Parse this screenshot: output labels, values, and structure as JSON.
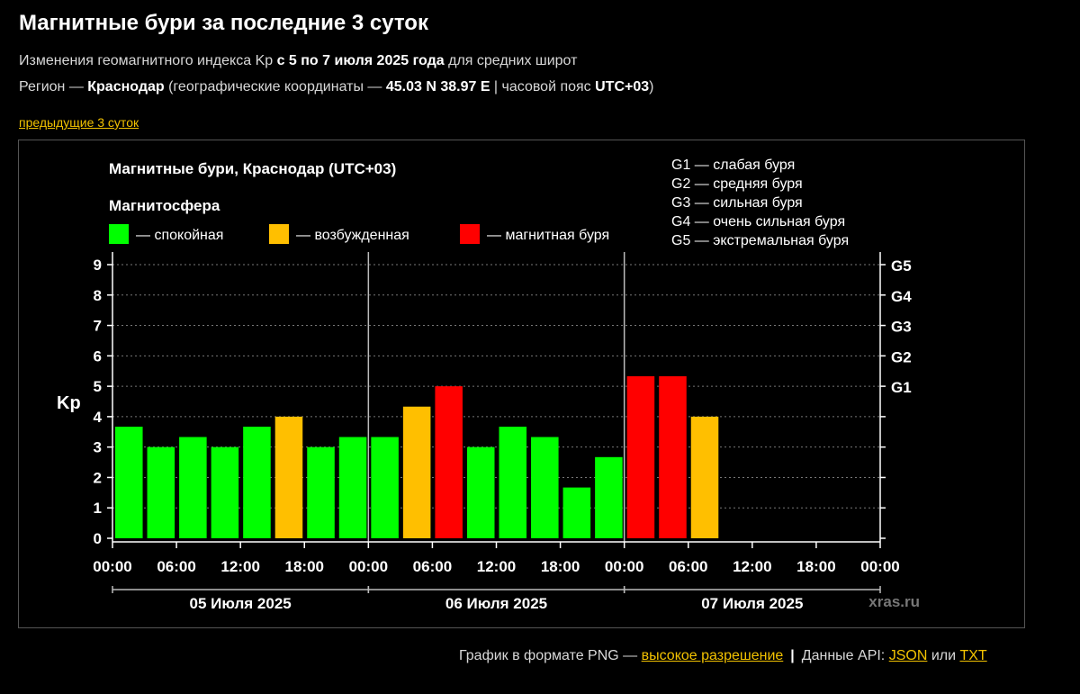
{
  "header": {
    "title": "Магнитные бури за последние 3 суток",
    "line1_prefix": "Изменения геомагнитного индекса Kp ",
    "line1_bold": "с 5 по 7 июля 2025 года",
    "line1_suffix": " для средних широт",
    "line2_prefix": "Регион — ",
    "line2_region": "Краснодар",
    "line2_mid": " (географические координаты — ",
    "line2_coords": "45.03 N 38.97 E",
    "line2_mid2": " | часовой пояс ",
    "line2_tz": "UTC+03",
    "line2_suffix": ")",
    "prev_link": "предыдущие 3 суток"
  },
  "colors": {
    "calm": "#00ff00",
    "excited": "#ffbf00",
    "storm": "#ff0000",
    "link": "#f2c200"
  },
  "chart_data": {
    "type": "bar",
    "title": "Магнитные бури, Краснодар (UTC+03)",
    "legend_title": "Магнитосфера",
    "legend": [
      {
        "label": "— спокойная",
        "color": "#00ff00"
      },
      {
        "label": "— возбужденная",
        "color": "#ffbf00"
      },
      {
        "label": "— магнитная буря",
        "color": "#ff0000"
      }
    ],
    "g_scale_legend": [
      "G1 — слабая буря",
      "G2 — средняя буря",
      "G3 — сильная буря",
      "G4 — очень сильная буря",
      "G5 — экстремальная буря"
    ],
    "ylabel": "Kp",
    "ylim": [
      0,
      9
    ],
    "y_ticks": [
      "0",
      "1",
      "2",
      "3",
      "4",
      "5",
      "6",
      "7",
      "8",
      "9"
    ],
    "right_ticks": [
      {
        "value": 5,
        "label": "G1"
      },
      {
        "value": 6,
        "label": "G2"
      },
      {
        "value": 7,
        "label": "G3"
      },
      {
        "value": 8,
        "label": "G4"
      },
      {
        "value": 9,
        "label": "G5"
      }
    ],
    "x_tick_labels": [
      "00:00",
      "06:00",
      "12:00",
      "18:00",
      "00:00",
      "06:00",
      "12:00",
      "18:00",
      "00:00",
      "06:00",
      "12:00",
      "18:00",
      "00:00"
    ],
    "days": [
      "05 Июля 2025",
      "06 Июля 2025",
      "07 Июля 2025"
    ],
    "intervals_per_day": 8,
    "series": [
      {
        "values": [
          3.67,
          3.0,
          3.33,
          3.0,
          3.67,
          4.0,
          3.0,
          3.33,
          3.33,
          4.33,
          5.0,
          3.0,
          3.67,
          3.33,
          1.67,
          2.67,
          5.33,
          5.33,
          4.0
        ]
      }
    ],
    "bar_status": [
      "calm",
      "calm",
      "calm",
      "calm",
      "calm",
      "excited",
      "calm",
      "calm",
      "calm",
      "excited",
      "storm",
      "calm",
      "calm",
      "calm",
      "calm",
      "calm",
      "storm",
      "storm",
      "excited"
    ],
    "watermark": "xras.ru"
  },
  "footer": {
    "prefix": "График в формате PNG — ",
    "hires_link": "высокое разрешение",
    "sep": "|",
    "api_prefix": "Данные API: ",
    "json_link": "JSON",
    "or": " или ",
    "txt_link": "TXT"
  }
}
